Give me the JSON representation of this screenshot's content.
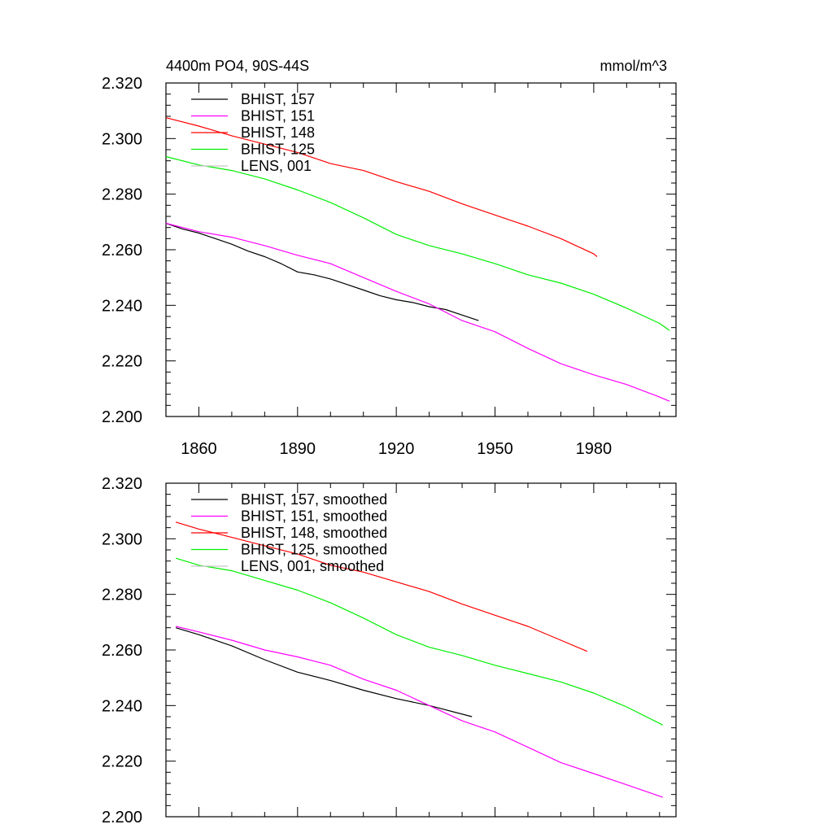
{
  "chart_data": [
    {
      "type": "line",
      "title_left": "4400m PO4, 90S-44S",
      "title_right": "mmol/m^3",
      "xlim": [
        1850,
        2005
      ],
      "ylim": [
        2.2,
        2.32
      ],
      "xticks": [
        1860,
        1890,
        1920,
        1950,
        1980
      ],
      "xtick_labels": [
        "1860",
        "1890",
        "1920",
        "1950",
        "1980"
      ],
      "yticks": [
        2.2,
        2.22,
        2.24,
        2.26,
        2.28,
        2.3,
        2.32
      ],
      "ytick_labels": [
        "2.200",
        "2.220",
        "2.240",
        "2.260",
        "2.280",
        "2.300",
        "2.320"
      ],
      "legend_position": "top-left",
      "series": [
        {
          "name": "BHIST, 157",
          "color": "#000000",
          "x": [
            1850,
            1855,
            1860,
            1865,
            1870,
            1875,
            1880,
            1885,
            1890,
            1895,
            1900,
            1905,
            1910,
            1915,
            1920,
            1925,
            1930,
            1935,
            1940,
            1945
          ],
          "y": [
            2.2695,
            2.2675,
            2.266,
            2.264,
            2.262,
            2.2595,
            2.2575,
            2.255,
            2.252,
            2.251,
            2.2495,
            2.2475,
            2.2455,
            2.2435,
            2.242,
            2.241,
            2.2395,
            2.2385,
            2.2365,
            2.2345
          ]
        },
        {
          "name": "BHIST, 151",
          "color": "#ff00ff",
          "x": [
            1850,
            1860,
            1870,
            1880,
            1890,
            1900,
            1910,
            1920,
            1930,
            1940,
            1950,
            1960,
            1970,
            1980,
            1990,
            2000,
            2003
          ],
          "y": [
            2.2695,
            2.2665,
            2.2645,
            2.2615,
            2.258,
            2.255,
            2.25,
            2.245,
            2.2405,
            2.2345,
            2.2305,
            2.2245,
            2.219,
            2.215,
            2.2115,
            2.207,
            2.2055
          ]
        },
        {
          "name": "BHIST, 148",
          "color": "#ff0000",
          "x": [
            1850,
            1860,
            1870,
            1880,
            1890,
            1900,
            1910,
            1920,
            1930,
            1940,
            1950,
            1960,
            1970,
            1980,
            1981
          ],
          "y": [
            2.3075,
            2.3045,
            2.301,
            2.298,
            2.295,
            2.291,
            2.2885,
            2.2845,
            2.281,
            2.2765,
            2.2725,
            2.2685,
            2.264,
            2.2585,
            2.2575
          ]
        },
        {
          "name": "BHIST, 125",
          "color": "#00ee00",
          "x": [
            1850,
            1860,
            1870,
            1880,
            1890,
            1900,
            1910,
            1920,
            1930,
            1940,
            1950,
            1960,
            1970,
            1980,
            1990,
            2000,
            2003
          ],
          "y": [
            2.2935,
            2.2905,
            2.2885,
            2.2855,
            2.2815,
            2.277,
            2.2715,
            2.2655,
            2.2615,
            2.2585,
            2.255,
            2.251,
            2.248,
            2.244,
            2.239,
            2.2335,
            2.231
          ]
        },
        {
          "name": "LENS, 001",
          "color": "#c8c8c8",
          "x": [],
          "y": []
        }
      ]
    },
    {
      "type": "line",
      "xlim": [
        1850,
        2005
      ],
      "ylim": [
        2.2,
        2.32
      ],
      "xticks": [
        1860,
        1890,
        1920,
        1950,
        1980
      ],
      "yticks": [
        2.2,
        2.22,
        2.24,
        2.26,
        2.28,
        2.3,
        2.32
      ],
      "ytick_labels": [
        "2.200",
        "2.220",
        "2.240",
        "2.260",
        "2.280",
        "2.300",
        "2.320"
      ],
      "legend_position": "top-left",
      "series": [
        {
          "name": "BHIST, 157, smoothed",
          "color": "#000000",
          "x": [
            1853,
            1860,
            1870,
            1880,
            1890,
            1900,
            1910,
            1920,
            1930,
            1943
          ],
          "y": [
            2.268,
            2.2655,
            2.2615,
            2.2565,
            2.252,
            2.249,
            2.2455,
            2.2425,
            2.24,
            2.236
          ]
        },
        {
          "name": "BHIST, 151, smoothed",
          "color": "#ff00ff",
          "x": [
            1853,
            1860,
            1870,
            1880,
            1890,
            1900,
            1910,
            1920,
            1930,
            1940,
            1950,
            1960,
            1970,
            1980,
            1990,
            2001
          ],
          "y": [
            2.2685,
            2.2665,
            2.2635,
            2.26,
            2.2575,
            2.2545,
            2.2495,
            2.2455,
            2.24,
            2.2345,
            2.2305,
            2.225,
            2.2195,
            2.2155,
            2.2115,
            2.207
          ]
        },
        {
          "name": "BHIST, 148, smoothed",
          "color": "#ff0000",
          "x": [
            1853,
            1860,
            1870,
            1880,
            1890,
            1900,
            1910,
            1920,
            1930,
            1940,
            1950,
            1960,
            1970,
            1978
          ],
          "y": [
            2.306,
            2.3035,
            2.3005,
            2.2975,
            2.2945,
            2.2905,
            2.288,
            2.2845,
            2.281,
            2.2765,
            2.2725,
            2.2685,
            2.2635,
            2.2595
          ]
        },
        {
          "name": "BHIST, 125, smoothed",
          "color": "#00ee00",
          "x": [
            1853,
            1860,
            1870,
            1880,
            1890,
            1900,
            1910,
            1920,
            1930,
            1940,
            1950,
            1960,
            1970,
            1980,
            1990,
            2001
          ],
          "y": [
            2.293,
            2.2905,
            2.2885,
            2.285,
            2.2815,
            2.277,
            2.2715,
            2.2655,
            2.261,
            2.258,
            2.2545,
            2.2515,
            2.2485,
            2.2445,
            2.2395,
            2.233
          ]
        },
        {
          "name": "LENS, 001, smoothed",
          "color": "#c8c8c8",
          "x": [],
          "y": []
        }
      ]
    }
  ]
}
